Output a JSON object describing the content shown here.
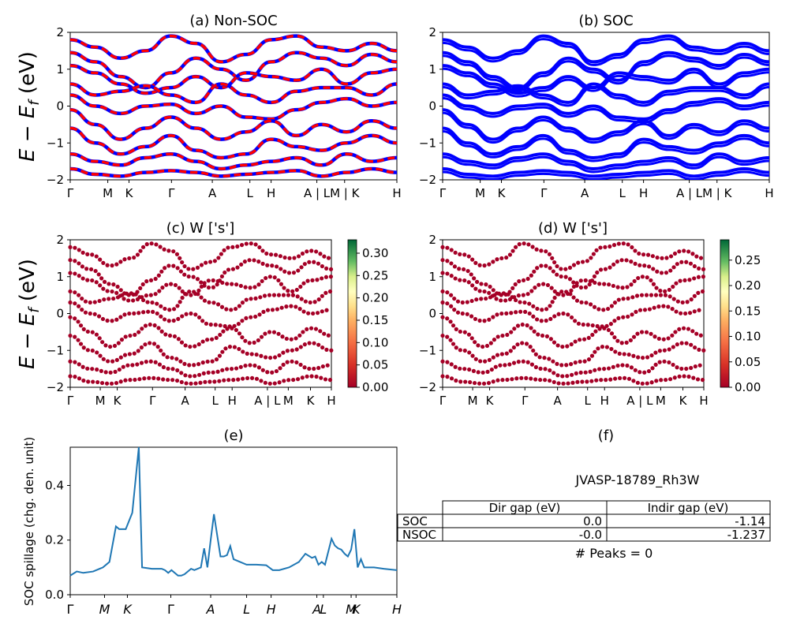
{
  "figure": {
    "panel_a_title": "(a) Non-SOC",
    "panel_b_title": "(b) SOC",
    "panel_c_title": "(c)  W ['s']",
    "panel_d_title": "(d) W ['s']",
    "panel_e_title": "(e)",
    "panel_f_title": "(f)",
    "band_ylabel": "E − E_f (eV)",
    "spillage_ylabel": "SOC spillage (chg. den. unit)",
    "material_id": "JVASP-18789_Rh3W",
    "table": {
      "headers": [
        "",
        "Dir gap (eV)",
        "Indir gap (eV)"
      ],
      "rows": [
        {
          "label": "SOC",
          "dir": "0.0",
          "indir": "-1.14"
        },
        {
          "label": "NSOC",
          "dir": "-0.0",
          "indir": "-1.237"
        }
      ]
    },
    "peaks_text": "# Peaks = 0"
  },
  "chart_data": [
    {
      "type": "line",
      "panel": "a",
      "title": "(a) Non-SOC",
      "ylabel": "E − E_f (eV)",
      "ylim": [
        -2,
        2
      ],
      "yticks": [
        "2",
        "1",
        "0",
        "−1",
        "−2"
      ],
      "xticks": [
        "Γ",
        "M",
        "K",
        "Γ",
        "A",
        "L",
        "H",
        "A | L",
        "M | K",
        "H"
      ],
      "colors": {
        "up": "#0000ff",
        "down": "#ff0000"
      },
      "series": [
        {
          "values": [
            1.8,
            1.6,
            1.3,
            1.5,
            1.9,
            1.7,
            1.2,
            1.4,
            1.8,
            1.9,
            1.6,
            1.5,
            1.7,
            1.5
          ]
        },
        {
          "values": [
            1.45,
            1.2,
            0.8,
            0.5,
            0.9,
            1.3,
            1.0,
            0.7,
            1.2,
            1.45,
            1.3,
            1.1,
            1.4,
            1.2
          ]
        },
        {
          "values": [
            1.1,
            0.9,
            0.6,
            0.35,
            0.5,
            0.8,
            0.5,
            0.9,
            0.8,
            0.7,
            1.0,
            0.6,
            0.9,
            1.0
          ]
        },
        {
          "values": [
            0.6,
            0.3,
            0.4,
            0.55,
            0.3,
            0.1,
            0.6,
            0.3,
            0.1,
            0.4,
            0.5,
            0.5,
            0.3,
            0.6
          ]
        },
        {
          "values": [
            0.3,
            0.0,
            -0.2,
            0.0,
            0.05,
            -0.2,
            0.0,
            -0.3,
            -0.35,
            -0.1,
            0.1,
            0.2,
            0.0,
            0.1
          ]
        },
        {
          "values": [
            -0.1,
            -0.5,
            -0.9,
            -0.6,
            -0.3,
            -0.6,
            -0.9,
            -0.7,
            -0.4,
            -0.8,
            -0.5,
            -0.7,
            -0.4,
            -0.6
          ]
        },
        {
          "values": [
            -0.6,
            -1.0,
            -1.3,
            -1.1,
            -0.8,
            -1.2,
            -1.4,
            -1.3,
            -0.9,
            -1.1,
            -1.2,
            -1.0,
            -0.8,
            -1.0
          ]
        },
        {
          "values": [
            -1.3,
            -1.5,
            -1.6,
            -1.4,
            -1.3,
            -1.5,
            -1.7,
            -1.6,
            -1.5,
            -1.4,
            -1.6,
            -1.3,
            -1.5,
            -1.4
          ]
        },
        {
          "values": [
            -1.7,
            -1.85,
            -1.9,
            -1.8,
            -1.75,
            -1.8,
            -1.9,
            -1.85,
            -1.8,
            -1.75,
            -1.9,
            -1.8,
            -1.7,
            -1.8
          ]
        }
      ]
    },
    {
      "type": "line",
      "panel": "b",
      "title": "(b) SOC",
      "ylim": [
        -2,
        2
      ],
      "yticks": [
        "2",
        "1",
        "0",
        "−1",
        "−2"
      ],
      "xticks": [
        "Γ",
        "M",
        "K",
        "Γ",
        "A",
        "L",
        "H",
        "A | L",
        "M | K",
        "H"
      ],
      "colors": {
        "bands": "#0000ff"
      },
      "series": [
        {
          "values": [
            1.8,
            1.6,
            1.3,
            1.5,
            1.9,
            1.7,
            1.2,
            1.4,
            1.8,
            1.9,
            1.6,
            1.5,
            1.7,
            1.5
          ]
        },
        {
          "values": [
            1.45,
            1.2,
            0.8,
            0.5,
            0.9,
            1.3,
            1.0,
            0.7,
            1.2,
            1.45,
            1.3,
            1.1,
            1.4,
            1.2
          ]
        },
        {
          "values": [
            1.1,
            0.9,
            0.6,
            0.35,
            0.5,
            0.8,
            0.5,
            0.9,
            0.8,
            0.7,
            1.0,
            0.6,
            0.9,
            1.0
          ]
        },
        {
          "values": [
            0.6,
            0.3,
            0.4,
            0.55,
            0.3,
            0.1,
            0.6,
            0.3,
            0.1,
            0.4,
            0.5,
            0.5,
            0.3,
            0.6
          ]
        },
        {
          "values": [
            0.3,
            0.0,
            -0.2,
            0.0,
            0.05,
            -0.2,
            0.0,
            -0.3,
            -0.35,
            -0.1,
            0.1,
            0.2,
            0.0,
            0.1
          ]
        },
        {
          "values": [
            -0.1,
            -0.5,
            -0.9,
            -0.6,
            -0.3,
            -0.6,
            -0.9,
            -0.7,
            -0.4,
            -0.8,
            -0.5,
            -0.7,
            -0.4,
            -0.6
          ]
        },
        {
          "values": [
            -0.6,
            -1.0,
            -1.3,
            -1.1,
            -0.8,
            -1.2,
            -1.4,
            -1.3,
            -0.9,
            -1.1,
            -1.2,
            -1.0,
            -0.8,
            -1.0
          ]
        },
        {
          "values": [
            -1.3,
            -1.5,
            -1.6,
            -1.4,
            -1.3,
            -1.5,
            -1.7,
            -1.6,
            -1.5,
            -1.4,
            -1.6,
            -1.3,
            -1.5,
            -1.4
          ]
        },
        {
          "values": [
            -1.7,
            -1.85,
            -1.9,
            -1.8,
            -1.75,
            -1.8,
            -1.9,
            -1.85,
            -1.8,
            -1.75,
            -1.9,
            -1.8,
            -1.7,
            -1.8
          ]
        }
      ]
    },
    {
      "type": "scatter",
      "panel": "c",
      "title": "(c)  W ['s']",
      "ylim": [
        -2,
        2
      ],
      "yticks": [
        "2",
        "1",
        "0",
        "−1",
        "−2"
      ],
      "xticks": [
        "Γ",
        "M",
        "K",
        "Γ",
        "A",
        "L",
        "H",
        "A | L",
        "M",
        "K",
        "H"
      ],
      "colorbar": {
        "ticks": [
          "0.30",
          "0.25",
          "0.20",
          "0.15",
          "0.10",
          "0.05",
          "0.00"
        ],
        "max": 0.33
      },
      "point_color": "#a50026"
    },
    {
      "type": "scatter",
      "panel": "d",
      "title": "(d) W ['s']",
      "ylim": [
        -2,
        2
      ],
      "yticks": [
        "2",
        "1",
        "0",
        "−1",
        "−2"
      ],
      "xticks": [
        "Γ",
        "M",
        "K",
        "Γ",
        "A",
        "L",
        "H",
        "A | L",
        "M",
        "K",
        "H"
      ],
      "colorbar": {
        "ticks": [
          "0.25",
          "0.20",
          "0.15",
          "0.10",
          "0.05",
          "0.00"
        ],
        "max": 0.29
      },
      "point_color": "#a50026"
    },
    {
      "type": "line",
      "panel": "e",
      "title": "(e)",
      "ylabel": "SOC spillage (chg. den. unit)",
      "ylim": [
        0,
        0.54
      ],
      "yticks": [
        "0.4",
        "0.2",
        "0.0"
      ],
      "xticks": [
        "Γ",
        "M",
        "K",
        "Γ",
        "A",
        "L",
        "H",
        "A",
        "L",
        "M",
        "K",
        "H"
      ],
      "color": "#1f77b4",
      "x": [
        0,
        0.02,
        0.04,
        0.07,
        0.1,
        0.12,
        0.14,
        0.15,
        0.17,
        0.19,
        0.21,
        0.22,
        0.25,
        0.28,
        0.29,
        0.3,
        0.31,
        0.33,
        0.34,
        0.35,
        0.37,
        0.38,
        0.4,
        0.41,
        0.42,
        0.43,
        0.44,
        0.46,
        0.47,
        0.48,
        0.49,
        0.5,
        0.52,
        0.54,
        0.57,
        0.6,
        0.62,
        0.64,
        0.67,
        0.7,
        0.72,
        0.74,
        0.75,
        0.76,
        0.77,
        0.78,
        0.8,
        0.81,
        0.82,
        0.83,
        0.84,
        0.85,
        0.86,
        0.87,
        0.88,
        0.89,
        0.9,
        0.93,
        0.96,
        1.0
      ],
      "y": [
        0.07,
        0.085,
        0.08,
        0.085,
        0.1,
        0.12,
        0.25,
        0.24,
        0.24,
        0.3,
        0.54,
        0.1,
        0.095,
        0.095,
        0.09,
        0.08,
        0.09,
        0.07,
        0.07,
        0.075,
        0.095,
        0.09,
        0.1,
        0.17,
        0.1,
        0.2,
        0.295,
        0.14,
        0.14,
        0.145,
        0.178,
        0.13,
        0.12,
        0.11,
        0.11,
        0.108,
        0.09,
        0.09,
        0.1,
        0.12,
        0.15,
        0.135,
        0.14,
        0.11,
        0.12,
        0.11,
        0.205,
        0.18,
        0.17,
        0.165,
        0.15,
        0.14,
        0.165,
        0.24,
        0.1,
        0.13,
        0.1,
        0.1,
        0.095,
        0.09
      ]
    }
  ]
}
